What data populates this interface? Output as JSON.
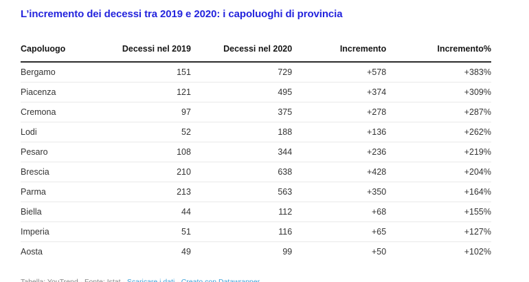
{
  "title": "L’incremento dei decessi tra 2019 e 2020: i capoluoghi di provincia",
  "colors": {
    "title": "#2424dd",
    "header_rule": "#2b2b2b",
    "row_rule": "#e9e9e9",
    "body_text": "#333333",
    "footer_text": "#858585",
    "link": "#3aa0d8",
    "background": "#ffffff"
  },
  "chart_data": {
    "type": "table",
    "title": "L’incremento dei decessi tra 2019 e 2020: i capoluoghi di provincia",
    "columns": [
      "Capoluogo",
      "Decessi nel 2019",
      "Decessi nel 2020",
      "Incremento",
      "Incremento%"
    ],
    "rows": [
      [
        "Bergamo",
        "151",
        "729",
        "+578",
        "+383%"
      ],
      [
        "Piacenza",
        "121",
        "495",
        "+374",
        "+309%"
      ],
      [
        "Cremona",
        "97",
        "375",
        "+278",
        "+287%"
      ],
      [
        "Lodi",
        "52",
        "188",
        "+136",
        "+262%"
      ],
      [
        "Pesaro",
        "108",
        "344",
        "+236",
        "+219%"
      ],
      [
        "Brescia",
        "210",
        "638",
        "+428",
        "+204%"
      ],
      [
        "Parma",
        "213",
        "563",
        "+350",
        "+164%"
      ],
      [
        "Biella",
        "44",
        "112",
        "+68",
        "+155%"
      ],
      [
        "Imperia",
        "51",
        "116",
        "+65",
        "+127%"
      ],
      [
        "Aosta",
        "49",
        "99",
        "+50",
        "+102%"
      ]
    ],
    "layout_hints": {
      "first_column_align": "left",
      "numeric_columns_align": "right",
      "grid": "horizontal-rules-only"
    }
  },
  "footer": {
    "separator": " · ",
    "parts": [
      {
        "name": "footer-table-credit",
        "text": "Tabella: YouTrend",
        "link": false
      },
      {
        "name": "footer-source-credit",
        "text": "Fonte: Istat",
        "link": false
      },
      {
        "name": "footer-download-link",
        "text": "Scaricare i dati",
        "link": true
      },
      {
        "name": "footer-datawrapper-link",
        "text": "Creato con Datawrapper",
        "link": true
      }
    ]
  }
}
